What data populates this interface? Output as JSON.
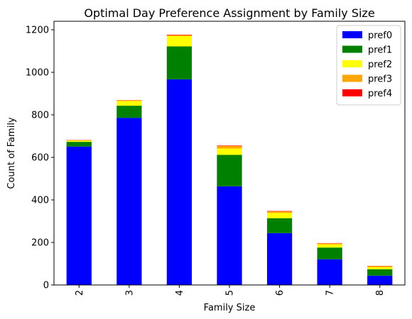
{
  "chart_data": {
    "type": "bar",
    "stacked": true,
    "title": "Optimal Day Preference Assignment by Family Size",
    "xlabel": "Family Size",
    "ylabel": "Count of Family",
    "categories": [
      "2",
      "3",
      "4",
      "5",
      "6",
      "7",
      "8"
    ],
    "ylim": [
      0,
      1240
    ],
    "yticks": [
      0,
      200,
      400,
      600,
      800,
      1000,
      1200
    ],
    "grid": false,
    "legend_position": "top-right",
    "series": [
      {
        "name": "pref0",
        "color": "#0000ff",
        "values": [
          651,
          786,
          967,
          464,
          244,
          121,
          44
        ]
      },
      {
        "name": "pref1",
        "color": "#008000",
        "values": [
          22,
          57,
          155,
          148,
          70,
          55,
          30
        ]
      },
      {
        "name": "pref2",
        "color": "#ffff00",
        "values": [
          6,
          22,
          48,
          30,
          25,
          15,
          10
        ]
      },
      {
        "name": "pref3",
        "color": "#ffa500",
        "values": [
          2,
          3,
          5,
          12,
          7,
          5,
          5
        ]
      },
      {
        "name": "pref4",
        "color": "#ff0000",
        "values": [
          1,
          1,
          2,
          2,
          2,
          1,
          1
        ]
      }
    ]
  }
}
